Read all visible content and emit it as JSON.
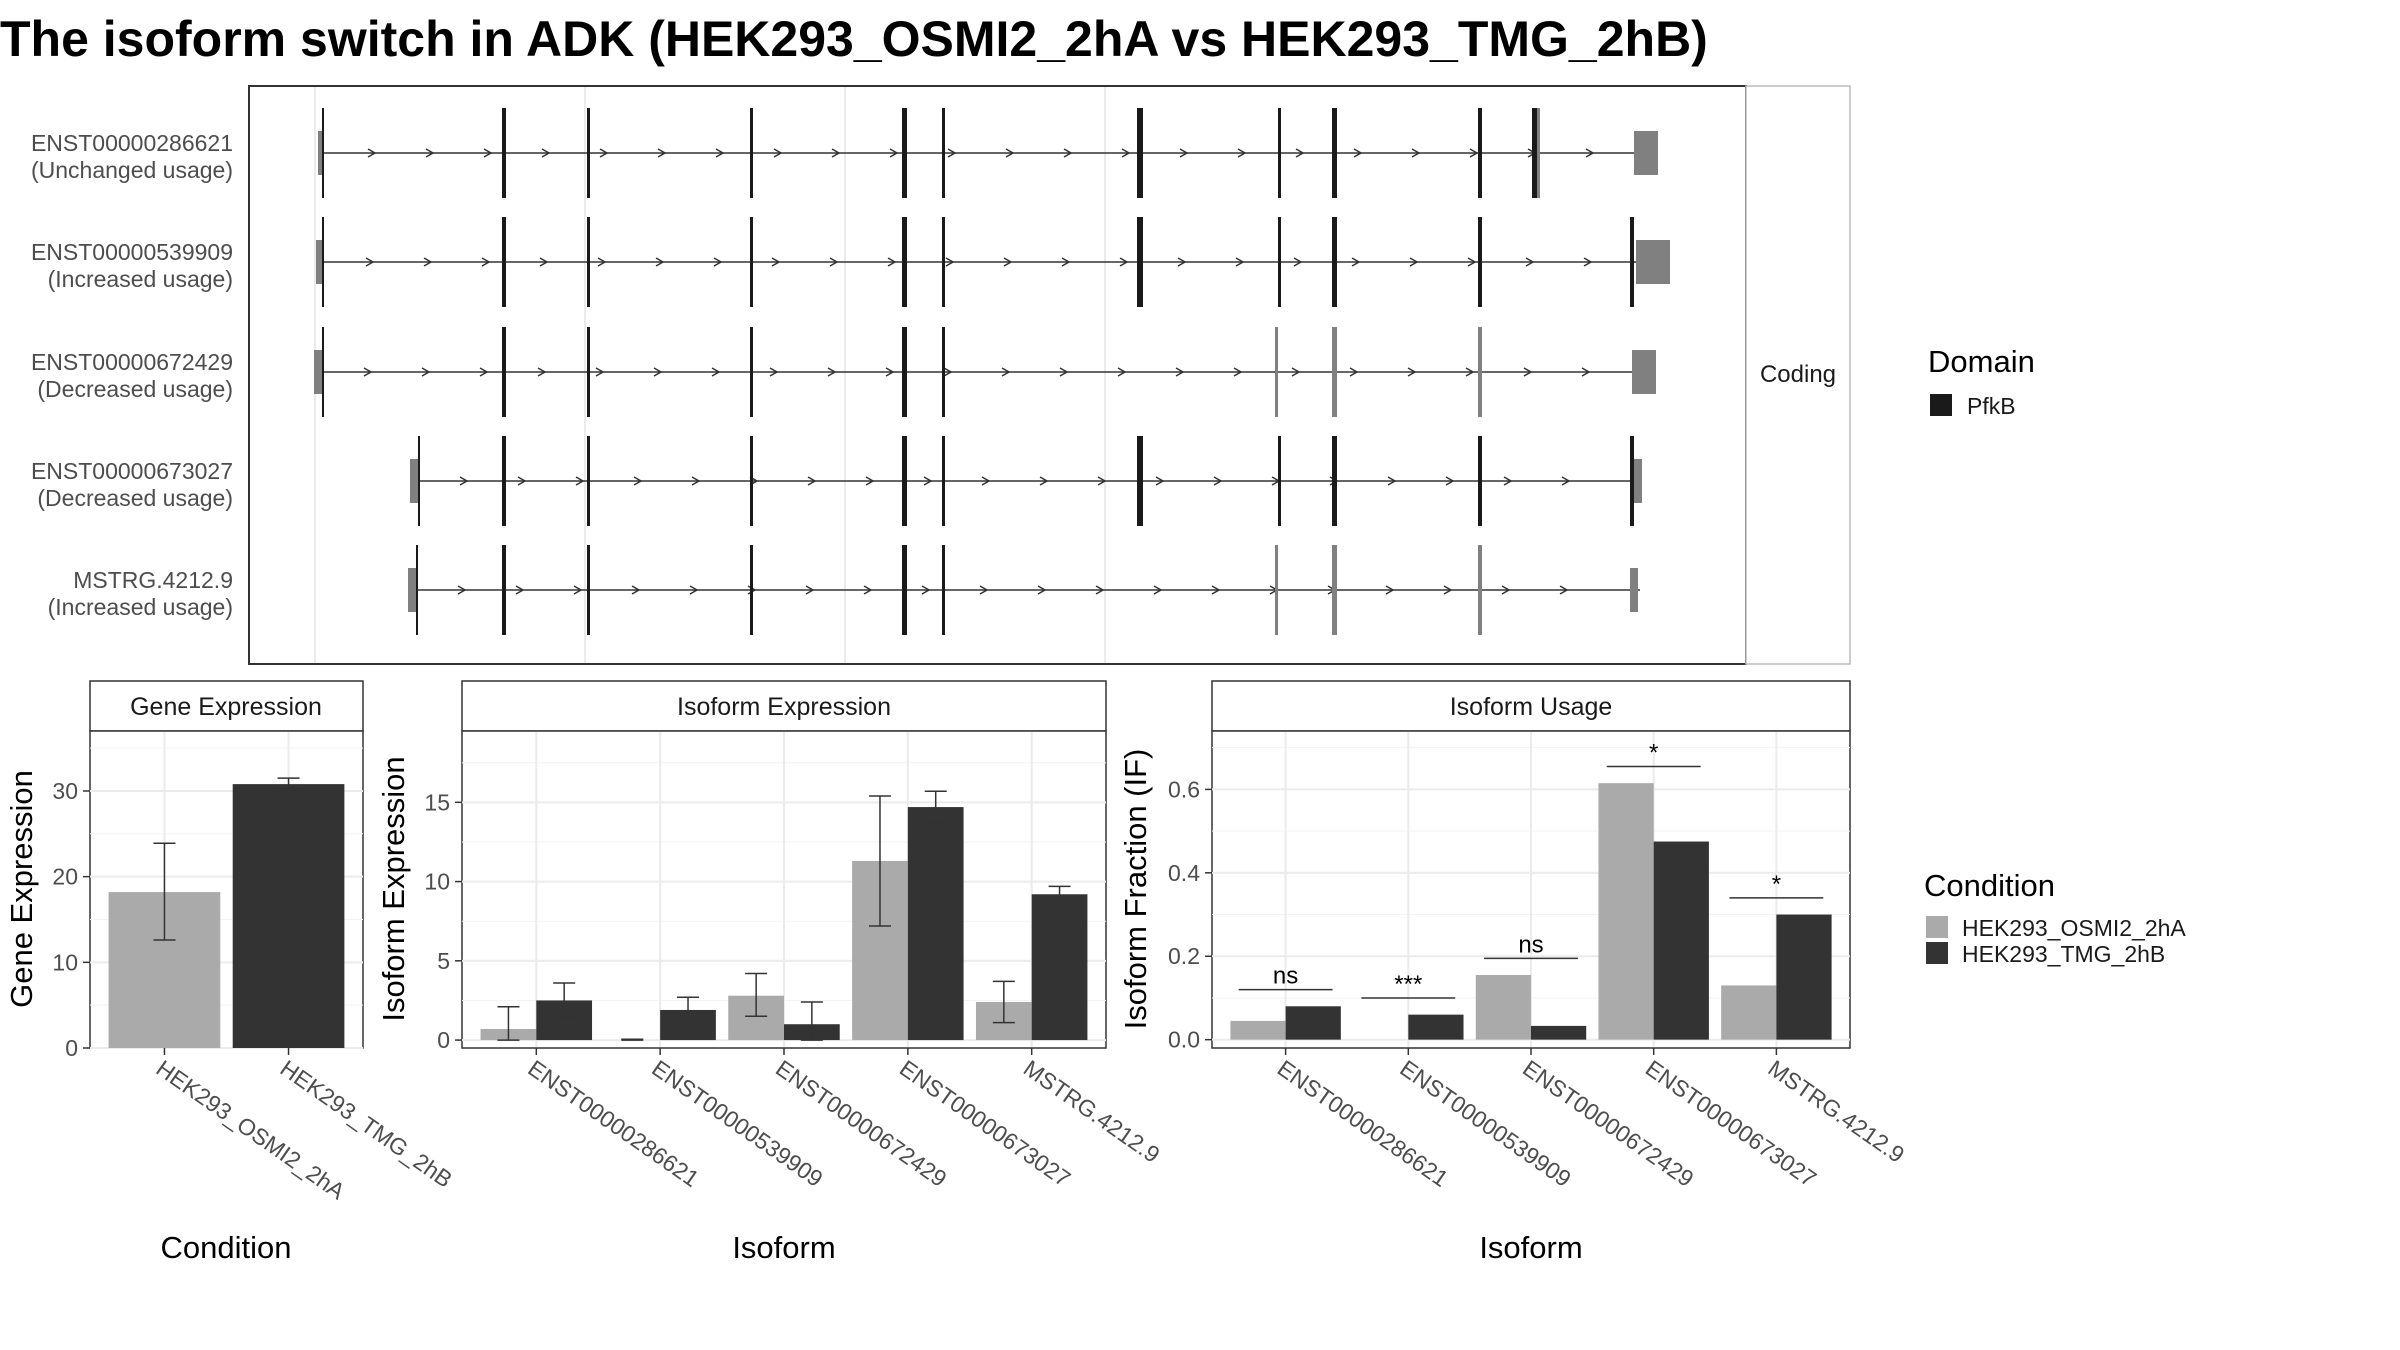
{
  "title": "The isoform switch in ADK (HEK293_OSMI2_2hA vs HEK293_TMG_2hB)",
  "structure": {
    "facet_label": "Coding",
    "isoforms": [
      {
        "id": "ENST00000286621",
        "usage": "(Unchanged usage)"
      },
      {
        "id": "ENST00000539909",
        "usage": "(Increased usage)"
      },
      {
        "id": "ENST00000672429",
        "usage": "(Decreased usage)"
      },
      {
        "id": "ENST00000673027",
        "usage": "(Decreased usage)"
      },
      {
        "id": "MSTRG.4212.9",
        "usage": "(Increased usage)"
      }
    ]
  },
  "legends": {
    "domain": {
      "title": "Domain",
      "items": [
        {
          "label": "PfkB",
          "color": "#1a1a1a"
        }
      ]
    },
    "condition": {
      "title": "Condition",
      "items": [
        {
          "label": "HEK293_OSMI2_2hA",
          "color": "#aaaaaa"
        },
        {
          "label": "HEK293_TMG_2hB",
          "color": "#333333"
        }
      ]
    }
  },
  "colors": {
    "osmi": "#aaaaaa",
    "tmg": "#333333",
    "utr": "#808080",
    "domain": "#1a1a1a"
  },
  "chart_data": [
    {
      "type": "bar",
      "title": "Gene Expression",
      "xlabel": "Condition",
      "ylabel": "Gene Expression",
      "categories": [
        "HEK293_OSMI2_2hA",
        "HEK293_TMG_2hB"
      ],
      "values": [
        18.2,
        30.8
      ],
      "errors": [
        [
          12.6,
          23.9
        ],
        [
          30.1,
          31.5
        ]
      ],
      "ylim": [
        0,
        37
      ],
      "yticks": [
        0,
        10,
        20,
        30
      ]
    },
    {
      "type": "bar",
      "title": "Isoform Expression",
      "xlabel": "Isoform",
      "ylabel": "Isoform Expression",
      "categories": [
        "ENST00000286621",
        "ENST00000539909",
        "ENST00000672429",
        "ENST00000673027",
        "MSTRG.4212.9"
      ],
      "series": [
        {
          "name": "HEK293_OSMI2_2hA",
          "values": [
            0.7,
            0.0,
            2.8,
            11.3,
            2.4
          ],
          "errors": [
            [
              0.0,
              2.1
            ],
            [
              0.0,
              0.05
            ],
            [
              1.5,
              4.2
            ],
            [
              7.2,
              15.4
            ],
            [
              1.1,
              3.7
            ]
          ]
        },
        {
          "name": "HEK293_TMG_2hB",
          "values": [
            2.5,
            1.9,
            1.0,
            14.7,
            9.2
          ],
          "errors": [
            [
              1.4,
              3.6
            ],
            [
              1.2,
              2.7
            ],
            [
              0.0,
              2.4
            ],
            [
              13.7,
              15.7
            ],
            [
              8.7,
              9.7
            ]
          ]
        }
      ],
      "ylim": [
        -0.5,
        19.5
      ],
      "yticks": [
        0,
        5,
        10,
        15
      ]
    },
    {
      "type": "bar",
      "title": "Isoform Usage",
      "xlabel": "Isoform",
      "ylabel": "Isoform Fraction (IF)",
      "categories": [
        "ENST00000286621",
        "ENST00000539909",
        "ENST00000672429",
        "ENST00000673027",
        "MSTRG.4212.9"
      ],
      "series": [
        {
          "name": "HEK293_OSMI2_2hA",
          "values": [
            0.045,
            0.0,
            0.155,
            0.615,
            0.13
          ]
        },
        {
          "name": "HEK293_TMG_2hB",
          "values": [
            0.08,
            0.06,
            0.033,
            0.475,
            0.3
          ]
        }
      ],
      "significance": [
        "ns",
        "***",
        "ns",
        "*",
        "*"
      ],
      "ylim": [
        -0.02,
        0.74
      ],
      "yticks": [
        0.0,
        0.2,
        0.4,
        0.6
      ],
      "ytick_labels": [
        "0.0",
        "0.2",
        "0.4",
        "0.6"
      ]
    }
  ]
}
